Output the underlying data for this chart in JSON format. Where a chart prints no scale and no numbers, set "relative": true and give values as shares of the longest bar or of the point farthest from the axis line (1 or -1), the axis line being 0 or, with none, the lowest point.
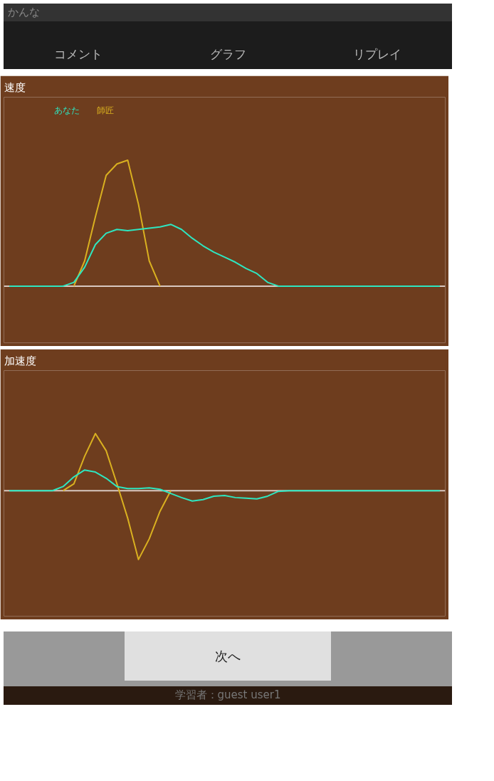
{
  "chart_data": [
    {
      "type": "line",
      "title": "速度",
      "relative": true,
      "annotations": [
        "かんな",
        "コメント",
        "グラフ",
        "リプレイ"
      ],
      "categories": [
        null,
        null,
        null,
        null,
        null,
        null,
        null,
        null,
        null,
        null,
        null,
        null,
        null,
        null,
        null,
        null,
        null,
        null,
        null,
        null,
        null,
        null,
        null,
        null,
        null,
        null,
        null,
        null,
        null,
        null,
        null,
        null,
        null,
        null,
        null,
        null,
        null,
        null,
        null,
        null,
        null
      ],
      "series": [
        {
          "name": "あなた",
          "color": "#2ee6c0",
          "values": [
            0,
            0,
            0,
            0,
            0,
            0,
            0.03,
            0.15,
            0.33,
            0.42,
            0.45,
            0.44,
            0.45,
            0.46,
            0.47,
            0.49,
            0.45,
            0.38,
            0.32,
            0.27,
            0.23,
            0.19,
            0.14,
            0.1,
            0.03,
            0,
            0,
            0,
            0,
            0,
            0,
            0,
            0,
            0,
            0,
            0,
            0,
            0,
            0,
            0,
            0
          ]
        },
        {
          "name": "師匠",
          "color": "#d9b020",
          "values": [
            null,
            null,
            null,
            null,
            null,
            null,
            0,
            0.2,
            0.55,
            0.88,
            0.97,
            1,
            0.65,
            0.2,
            0,
            null,
            null,
            null,
            null,
            null,
            null,
            null,
            null,
            null,
            null,
            null,
            null,
            null,
            null,
            null,
            null,
            null,
            null,
            null,
            null,
            null,
            null,
            null,
            null,
            null,
            null
          ]
        }
      ]
    },
    {
      "type": "line",
      "title": "加速度",
      "relative": true,
      "annotations": [
        "次へ",
        "学習者：guest user1"
      ],
      "categories": [
        null,
        null,
        null,
        null,
        null,
        null,
        null,
        null,
        null,
        null,
        null,
        null,
        null,
        null,
        null,
        null,
        null,
        null,
        null,
        null,
        null,
        null,
        null,
        null,
        null,
        null,
        null,
        null,
        null,
        null,
        null,
        null,
        null,
        null,
        null,
        null,
        null,
        null,
        null,
        null,
        null
      ],
      "series": [
        {
          "color": "#2ee6c0",
          "values": [
            0,
            0,
            0,
            0,
            0,
            0.06,
            0.2,
            0.3,
            0.27,
            0.18,
            0.06,
            0.03,
            0.03,
            0.04,
            0.02,
            -0.04,
            -0.1,
            -0.15,
            -0.13,
            -0.08,
            -0.07,
            -0.1,
            -0.11,
            -0.12,
            -0.08,
            -0.01,
            0,
            0,
            0,
            0,
            0,
            0,
            0,
            0,
            0,
            0,
            0,
            0,
            0,
            0,
            0
          ]
        },
        {
          "color": "#d9b020",
          "values": [
            null,
            null,
            null,
            null,
            null,
            0,
            0.1,
            0.5,
            0.83,
            0.58,
            0.1,
            -0.4,
            -1.0,
            -0.7,
            -0.3,
            0,
            null,
            null,
            null,
            null,
            null,
            null,
            null,
            null,
            null,
            null,
            null,
            null,
            null,
            null,
            null,
            null,
            null,
            null,
            null,
            null,
            null,
            null,
            null,
            null,
            null
          ]
        }
      ]
    }
  ]
}
